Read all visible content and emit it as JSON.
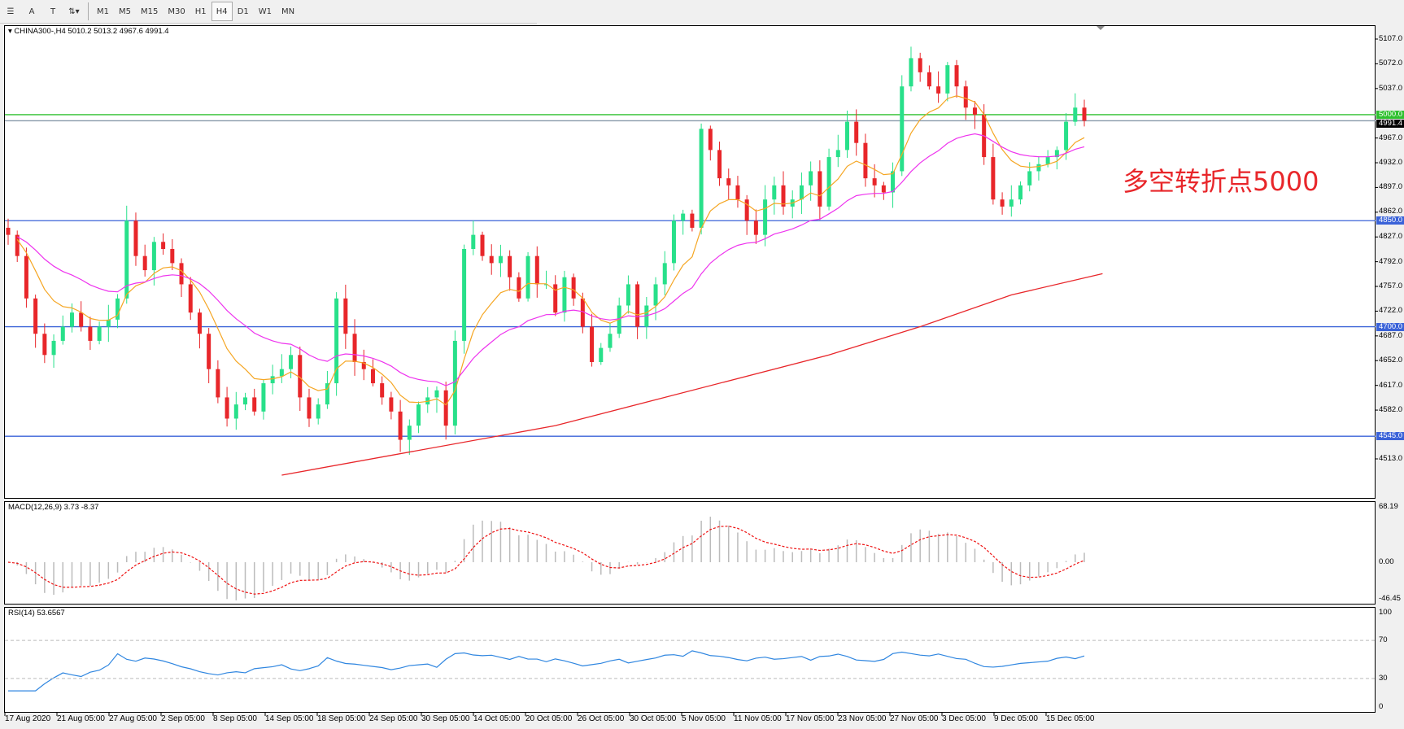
{
  "toolbar": {
    "tools": [
      "menu-icon",
      "text-A",
      "text-box",
      "arrows"
    ],
    "timeframes": [
      "M1",
      "M5",
      "M15",
      "M30",
      "H1",
      "H4",
      "D1",
      "W1",
      "MN"
    ],
    "active": "H4"
  },
  "chart": {
    "header": "CHINA300-,H4  5010.2 5013.2 4967.6 4991.4",
    "symbol": "CHINA300-",
    "timeframe": "H4",
    "open": 5010.2,
    "high": 5013.2,
    "low": 4967.6,
    "close": 4991.4,
    "price_ticks": [
      "5107.0",
      "5072.0",
      "5037.0",
      "4967.0",
      "4932.0",
      "4897.0",
      "4862.0",
      "4827.0",
      "4792.0",
      "4757.0",
      "4722.0",
      "4687.0",
      "4652.0",
      "4617.0",
      "4582.0",
      "4513.0"
    ],
    "hlines": [
      {
        "price": 5000.0,
        "label": "5000.0",
        "color": "#2ec02e"
      },
      {
        "price": 4991.4,
        "label": "4991.4",
        "color": "#000000"
      },
      {
        "price": 4850.0,
        "label": "4850.0",
        "color": "#3a62d8"
      },
      {
        "price": 4700.0,
        "label": "4700.0",
        "color": "#3a62d8"
      },
      {
        "price": 4545.0,
        "label": "4545.0",
        "color": "#3a62d8"
      }
    ],
    "annotation": "多空转折点5000",
    "colors": {
      "up": "#28e08a",
      "down": "#e8262a",
      "ma_fast": "#f5a623",
      "ma_mid": "#ee33ee",
      "ma_slow": "#e8262a"
    },
    "closes": [
      4830,
      4800,
      4740,
      4690,
      4660,
      4680,
      4700,
      4720,
      4700,
      4680,
      4700,
      4710,
      4740,
      4850,
      4800,
      4780,
      4820,
      4810,
      4790,
      4760,
      4720,
      4690,
      4640,
      4600,
      4570,
      4590,
      4600,
      4580,
      4620,
      4630,
      4640,
      4660,
      4600,
      4570,
      4590,
      4620,
      4740,
      4690,
      4650,
      4640,
      4620,
      4600,
      4580,
      4540,
      4560,
      4590,
      4600,
      4610,
      4560,
      4680,
      4810,
      4830,
      4800,
      4790,
      4800,
      4770,
      4740,
      4800,
      4760,
      4760,
      4720,
      4770,
      4740,
      4700,
      4650,
      4670,
      4690,
      4730,
      4760,
      4700,
      4730,
      4760,
      4790,
      4850,
      4860,
      4840,
      4980,
      4950,
      4910,
      4900,
      4880,
      4850,
      4830,
      4880,
      4900,
      4870,
      4880,
      4900,
      4920,
      4870,
      4940,
      4950,
      4990,
      4960,
      4910,
      4900,
      4890,
      4920,
      5040,
      5080,
      5060,
      5040,
      5030,
      5070,
      5040,
      5010,
      5000,
      4940,
      4880,
      4870,
      4880,
      4900,
      4920,
      4930,
      4940,
      4950,
      4990,
      5010,
      4991.4
    ],
    "ma_slow_points": [
      [
        30,
        4490
      ],
      [
        60,
        4560
      ],
      [
        90,
        4660
      ],
      [
        100,
        4700
      ],
      [
        110,
        4745
      ],
      [
        120,
        4775
      ]
    ]
  },
  "macd": {
    "label": "MACD(12,26,9) 3.73 -8.37",
    "params": "12,26,9",
    "main": 3.73,
    "signal": -8.37,
    "ticks": [
      "68.19",
      "0.00",
      "-46.45"
    ],
    "range": [
      -46.45,
      68.19
    ]
  },
  "rsi": {
    "label": "RSI(14) 53.6567",
    "value": 53.6567,
    "ticks": [
      "100",
      "70",
      "30",
      "0"
    ],
    "levels": [
      70,
      30
    ]
  },
  "dates": [
    "17 Aug 2020",
    "21 Aug 05:00",
    "27 Aug 05:00",
    "2 Sep 05:00",
    "8 Sep 05:00",
    "14 Sep 05:00",
    "18 Sep 05:00",
    "24 Sep 05:00",
    "30 Sep 05:00",
    "14 Oct 05:00",
    "20 Oct 05:00",
    "26 Oct 05:00",
    "30 Oct 05:00",
    "5 Nov 05:00",
    "11 Nov 05:00",
    "17 Nov 05:00",
    "23 Nov 05:00",
    "27 Nov 05:00",
    "3 Dec 05:00",
    "9 Dec 05:00",
    "15 Dec 05:00"
  ]
}
